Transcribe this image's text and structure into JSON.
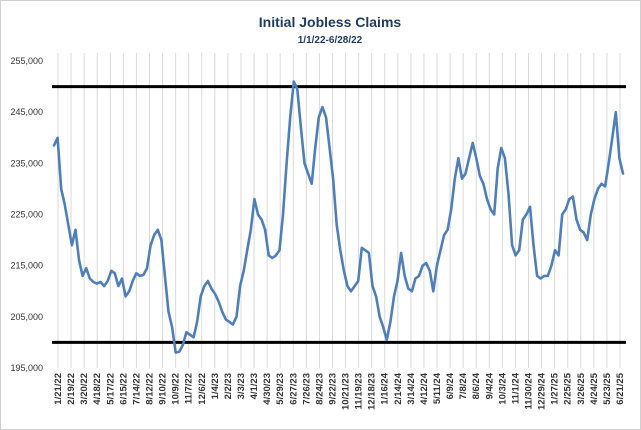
{
  "chart_data": {
    "type": "line",
    "title": "Initial Jobless Claims",
    "subtitle": "1/1/22-6/28/22",
    "xlabel": "",
    "ylabel": "",
    "ylim": [
      195000,
      255000
    ],
    "y_ticks": [
      "195,000",
      "205,000",
      "215,000",
      "225,000",
      "235,000",
      "245,000",
      "255,000"
    ],
    "x_tick_labels": [
      "1/21/22",
      "2/19/22",
      "3/20/22",
      "4/18/22",
      "5/17/22",
      "6/15/22",
      "7/14/22",
      "8/12/22",
      "9/10/22",
      "10/9/22",
      "11/7/22",
      "12/6/22",
      "1/4/23",
      "2/2/23",
      "3/3/23",
      "4/1/23",
      "4/30/23",
      "5/29/23",
      "6/27/23",
      "7/26/23",
      "8/24/23",
      "9/22/23",
      "10/21/23",
      "11/19/23",
      "12/18/23",
      "1/16/24",
      "2/14/24",
      "3/14/24",
      "4/12/24",
      "5/11/24",
      "6/9/24",
      "7/8/24",
      "8/6/24",
      "9/4/24",
      "10/3/24",
      "11/1/24",
      "11/30/24",
      "12/29/24",
      "1/27/25",
      "2/25/25",
      "3/26/25",
      "4/24/25",
      "5/23/25",
      "6/21/25"
    ],
    "reference_lines": [
      250000,
      200000
    ],
    "colors": {
      "series": "#4f7fba",
      "reference": "#000000",
      "grid": "#d9d9d9"
    },
    "grid": "vertical",
    "legend": "none",
    "series": [
      {
        "values": [
          238500,
          240000,
          230000,
          227000,
          223000,
          219000,
          222000,
          216000,
          213000,
          214500,
          212500,
          211800,
          211500,
          211800,
          211000,
          212000,
          214000,
          213500,
          211000,
          212500,
          209000,
          210000,
          212000,
          213500,
          213000,
          213200,
          214500,
          219000,
          221000,
          222000,
          220000,
          213000,
          206000,
          203000,
          198000,
          198200,
          199500,
          202000,
          201500,
          201000,
          204000,
          209000,
          211000,
          212000,
          210500,
          209500,
          208000,
          206000,
          204500,
          204000,
          203500,
          205000,
          211000,
          214000,
          218000,
          222000,
          228000,
          225000,
          224000,
          222000,
          217000,
          216500,
          217000,
          218000,
          225000,
          235000,
          244000,
          251000,
          249500,
          242000,
          235000,
          233000,
          231000,
          238000,
          244000,
          246000,
          244000,
          238000,
          232000,
          223000,
          218000,
          214000,
          211000,
          210000,
          211000,
          212000,
          218500,
          218000,
          217500,
          211000,
          209000,
          205000,
          203000,
          200500,
          204000,
          209000,
          212000,
          217500,
          213000,
          210500,
          210000,
          212500,
          213000,
          215000,
          215500,
          214000,
          210000,
          215000,
          218000,
          221000,
          222000,
          226000,
          232000,
          236000,
          232000,
          233000,
          236000,
          239000,
          236000,
          232500,
          231000,
          228000,
          226000,
          225000,
          234000,
          238000,
          236000,
          229000,
          219000,
          217000,
          218000,
          224000,
          225000,
          226500,
          219000,
          213000,
          212500,
          213000,
          213000,
          215000,
          218000,
          217000,
          225000,
          226000,
          228000,
          228500,
          224000,
          222000,
          221500,
          220000,
          225000,
          228000,
          230000,
          231000,
          230500,
          235000,
          240000,
          245000,
          236000,
          233000
        ]
      }
    ]
  }
}
